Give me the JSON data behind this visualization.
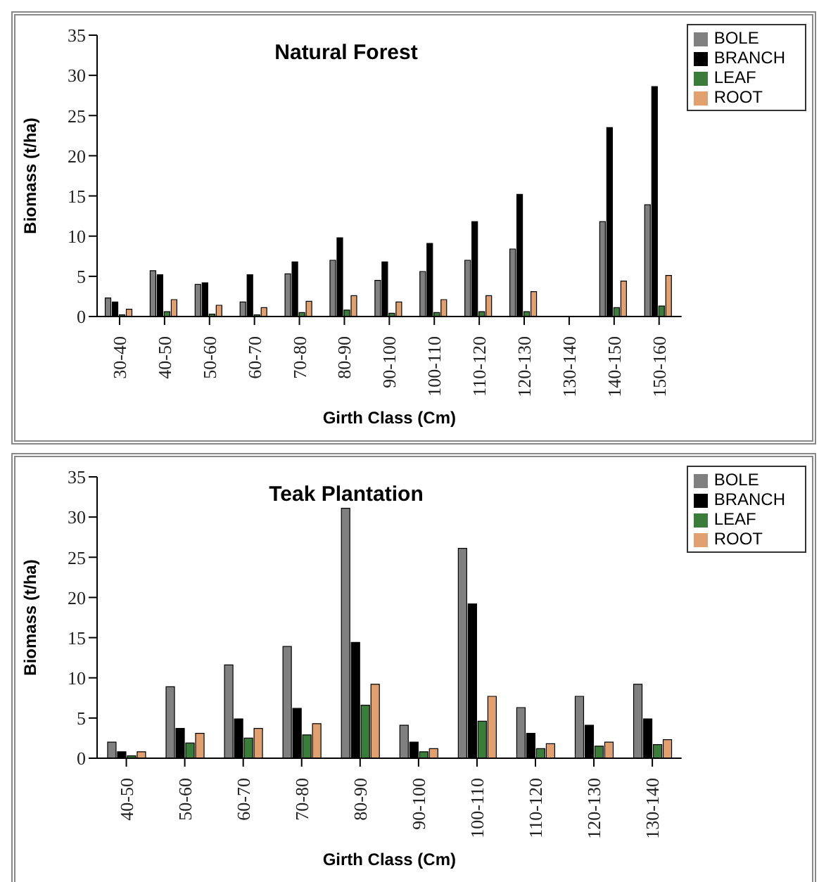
{
  "chart_data": [
    {
      "type": "bar",
      "title": "Natural Forest",
      "xlabel": "Girth Class (Cm)",
      "ylabel": "Biomass (t/ha)",
      "categories": [
        "30-40",
        "40-50",
        "50-60",
        "60-70",
        "70-80",
        "80-90",
        "90-100",
        "100-110",
        "110-120",
        "120-130",
        "130-140",
        "140-150",
        "150-160"
      ],
      "series": [
        {
          "name": "BOLE",
          "color": "#808080",
          "values": [
            2.3,
            5.7,
            4.0,
            1.8,
            5.3,
            7.0,
            4.5,
            5.6,
            7.0,
            8.4,
            null,
            11.8,
            13.9
          ]
        },
        {
          "name": "BRANCH",
          "color": "#000000",
          "values": [
            1.8,
            5.2,
            4.2,
            5.2,
            6.8,
            9.8,
            6.8,
            9.1,
            11.8,
            15.2,
            null,
            23.5,
            28.6
          ]
        },
        {
          "name": "LEAF",
          "color": "#3a7d3a",
          "values": [
            0.2,
            0.6,
            0.3,
            0.2,
            0.5,
            0.8,
            0.4,
            0.5,
            0.6,
            0.6,
            null,
            1.1,
            1.3
          ]
        },
        {
          "name": "ROOT",
          "color": "#e0a070",
          "values": [
            0.9,
            2.1,
            1.4,
            1.1,
            1.9,
            2.6,
            1.8,
            2.1,
            2.6,
            3.1,
            null,
            4.4,
            5.1
          ]
        }
      ],
      "ylim": [
        0,
        35
      ],
      "yticks": [
        0,
        5,
        10,
        15,
        20,
        25,
        30,
        35
      ],
      "grid": false,
      "legend": "top right"
    },
    {
      "type": "bar",
      "title": "Teak Plantation",
      "xlabel": "Girth Class (Cm)",
      "ylabel": "Biomass (t/ha)",
      "categories": [
        "40-50",
        "50-60",
        "60-70",
        "70-80",
        "80-90",
        "90-100",
        "100-110",
        "110-120",
        "120-130",
        "130-140"
      ],
      "series": [
        {
          "name": "BOLE",
          "color": "#808080",
          "values": [
            2.0,
            8.9,
            11.6,
            13.9,
            31.1,
            4.1,
            26.1,
            6.3,
            7.7,
            9.2
          ]
        },
        {
          "name": "BRANCH",
          "color": "#000000",
          "values": [
            0.8,
            3.7,
            4.9,
            6.2,
            14.4,
            2.0,
            19.2,
            3.1,
            4.1,
            4.9
          ]
        },
        {
          "name": "LEAF",
          "color": "#3a7d3a",
          "values": [
            0.3,
            1.9,
            2.5,
            2.9,
            6.6,
            0.8,
            4.6,
            1.2,
            1.5,
            1.7
          ]
        },
        {
          "name": "ROOT",
          "color": "#e0a070",
          "values": [
            0.8,
            3.1,
            3.7,
            4.3,
            9.2,
            1.2,
            7.7,
            1.8,
            2.0,
            2.3
          ]
        }
      ],
      "ylim": [
        0,
        35
      ],
      "yticks": [
        0,
        5,
        10,
        15,
        20,
        25,
        30,
        35
      ],
      "grid": false,
      "legend": "top right"
    }
  ]
}
